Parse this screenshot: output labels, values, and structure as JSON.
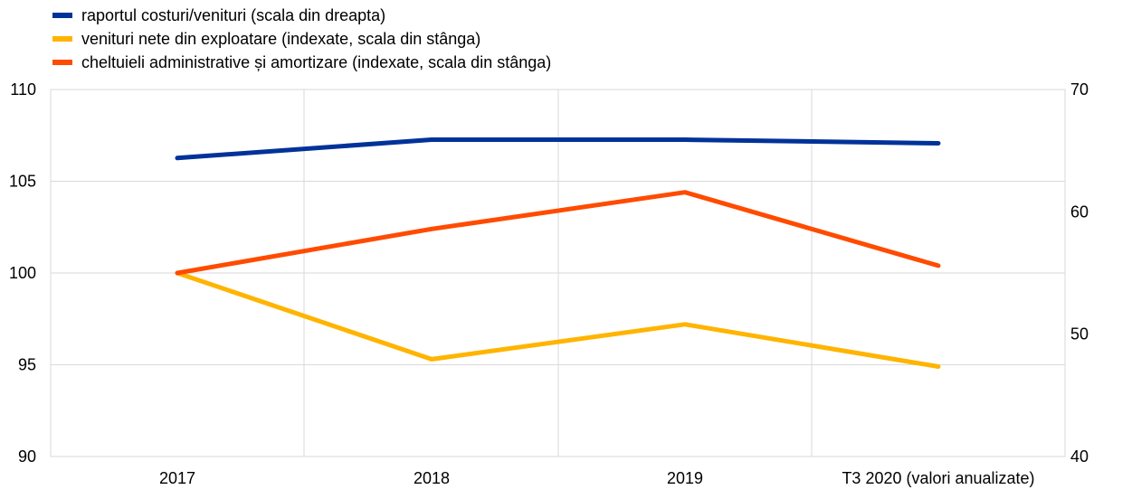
{
  "chart_data": {
    "type": "line",
    "categories": [
      "2017",
      "2018",
      "2019",
      "T3 2020 (valori anualizate)"
    ],
    "y_left": {
      "range": [
        90,
        110
      ],
      "ticks": [
        90,
        95,
        100,
        105,
        110
      ]
    },
    "y_right": {
      "range": [
        40,
        70
      ],
      "ticks": [
        40,
        50,
        60,
        70
      ]
    },
    "grid": true,
    "legend_position": "top-left",
    "series": [
      {
        "name": "raportul costuri/venituri (scala din dreapta)",
        "axis": "right",
        "color": "#003299",
        "values": [
          64.4,
          65.9,
          65.9,
          65.6
        ]
      },
      {
        "name": "venituri nete din exploatare (indexate, scala din stânga)",
        "axis": "left",
        "color": "#FFB400",
        "values": [
          100.0,
          95.3,
          97.2,
          94.9
        ]
      },
      {
        "name": "cheltuieli administrative și amortizare (indexate, scala din stânga)",
        "axis": "left",
        "color": "#FF4B00",
        "values": [
          100.0,
          102.4,
          104.4,
          100.4
        ]
      }
    ]
  }
}
